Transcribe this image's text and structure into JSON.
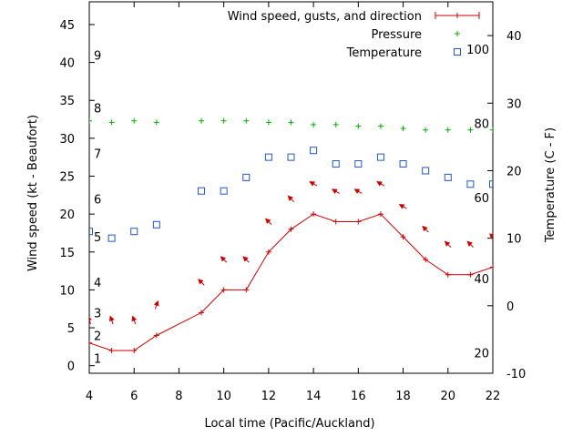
{
  "chart_data": {
    "type": "line",
    "xlabel": "Local time (Pacific/Auckland)",
    "ylabel_left": "Wind speed (kt - Beaufort)",
    "ylabel_right": "Temperature (C - F)",
    "xlim": [
      4,
      22
    ],
    "ylim_left": [
      -1,
      48
    ],
    "ylim_right": [
      -10,
      45
    ],
    "x_ticks": [
      4,
      6,
      8,
      10,
      12,
      14,
      16,
      18,
      20,
      22
    ],
    "y_ticks_left": [
      0,
      5,
      10,
      15,
      20,
      25,
      30,
      35,
      40,
      45
    ],
    "y_ticks_right": [
      -10,
      0,
      10,
      20,
      30,
      40
    ],
    "beaufort_labels": [
      {
        "label": "1",
        "y": 1
      },
      {
        "label": "2",
        "y": 4
      },
      {
        "label": "3",
        "y": 7
      },
      {
        "label": "4",
        "y": 11
      },
      {
        "label": "5",
        "y": 17
      },
      {
        "label": "6",
        "y": 22
      },
      {
        "label": "7",
        "y": 28
      },
      {
        "label": "8",
        "y": 34
      },
      {
        "label": "9",
        "y": 41
      }
    ],
    "fahrenheit_labels": [
      {
        "label": "20",
        "y": -7
      },
      {
        "label": "40",
        "y": 4
      },
      {
        "label": "60",
        "y": 16
      },
      {
        "label": "80",
        "y": 27
      },
      {
        "label": "100",
        "y": 38
      }
    ],
    "legend_position": "top-right",
    "series": [
      {
        "name": "Wind speed, gusts, and direction",
        "color": "#cc0000",
        "style": "line+plus",
        "axis": "left",
        "x": [
          3,
          4,
          5,
          6,
          7,
          9,
          10,
          11,
          12,
          13,
          14,
          15,
          16,
          17,
          18,
          19,
          20,
          21,
          22
        ],
        "values": [
          3,
          3,
          2,
          2,
          4,
          7,
          10,
          10,
          15,
          18,
          20,
          19,
          19,
          20,
          17,
          14,
          12,
          12,
          13
        ],
        "gusts_y": [
          7,
          6,
          6,
          6,
          8,
          11,
          14,
          14,
          19,
          22,
          24,
          23,
          23,
          24,
          21,
          18,
          16,
          16,
          17
        ],
        "direction_deg": [
          315,
          340,
          340,
          340,
          20,
          315,
          315,
          315,
          315,
          315,
          300,
          300,
          300,
          300,
          300,
          315,
          315,
          315,
          315
        ]
      },
      {
        "name": "Pressure",
        "color": "#00b000",
        "style": "plus",
        "axis": "left",
        "x": [
          4,
          5,
          6,
          7,
          9,
          10,
          11,
          12,
          13,
          14,
          15,
          16,
          17,
          18,
          19,
          20,
          21,
          22
        ],
        "values": [
          32.3,
          32.1,
          32.3,
          32.1,
          32.3,
          32.3,
          32.3,
          32.1,
          32.1,
          31.8,
          31.8,
          31.6,
          31.6,
          31.3,
          31.1,
          31.1,
          31.1,
          31.1
        ]
      },
      {
        "name": "Temperature",
        "color": "#2255cc",
        "style": "square",
        "axis": "right",
        "x": [
          4,
          5,
          6,
          7,
          9,
          10,
          11,
          12,
          13,
          14,
          15,
          16,
          17,
          18,
          19,
          20,
          21,
          22
        ],
        "values": [
          11,
          10,
          11,
          12,
          17,
          17,
          19,
          22,
          22,
          23,
          21,
          21,
          22,
          21,
          20,
          19,
          18,
          18
        ]
      }
    ]
  }
}
